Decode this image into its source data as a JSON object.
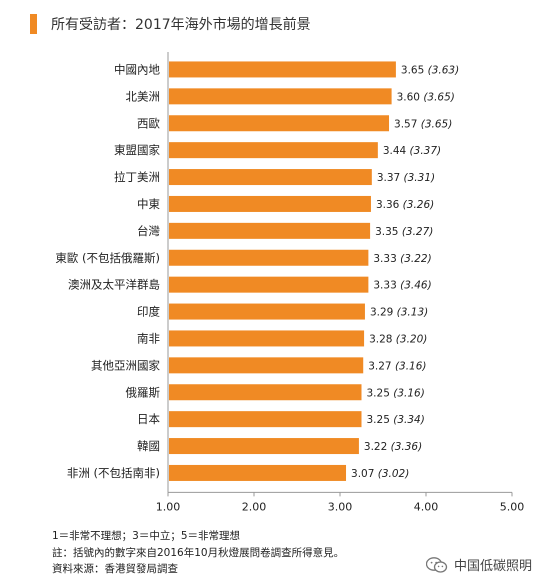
{
  "title": "所有受訪者：2017年海外市場的增長前景",
  "chart_data": {
    "type": "bar",
    "orientation": "horizontal",
    "title": "所有受訪者：2017年海外市場的增長前景",
    "categories": [
      "中國內地",
      "北美洲",
      "西歐",
      "東盟國家",
      "拉丁美洲",
      "中東",
      "台灣",
      "東歐 (不包括俄羅斯)",
      "澳洲及太平洋群島",
      "印度",
      "南非",
      "其他亞洲國家",
      "俄羅斯",
      "日本",
      "韓國",
      "非洲 (不包括南非)"
    ],
    "values": [
      3.65,
      3.6,
      3.57,
      3.44,
      3.37,
      3.36,
      3.35,
      3.33,
      3.33,
      3.29,
      3.28,
      3.27,
      3.25,
      3.25,
      3.22,
      3.07
    ],
    "previous_values": [
      3.63,
      3.65,
      3.65,
      3.37,
      3.31,
      3.26,
      3.27,
      3.22,
      3.46,
      3.13,
      3.2,
      3.16,
      3.16,
      3.34,
      3.36,
      3.02
    ],
    "value_labels": [
      "3.65",
      "3.60",
      "3.57",
      "3.44",
      "3.37",
      "3.36",
      "3.35",
      "3.33",
      "3.33",
      "3.29",
      "3.28",
      "3.27",
      "3.25",
      "3.25",
      "3.22",
      "3.07"
    ],
    "previous_labels": [
      "(3.63)",
      "(3.65)",
      "(3.65)",
      "(3.37)",
      "(3.31)",
      "(3.26)",
      "(3.27)",
      "(3.22)",
      "(3.46)",
      "(3.13)",
      "(3.20)",
      "(3.16)",
      "(3.16)",
      "(3.34)",
      "(3.36)",
      "(3.02)"
    ],
    "xlim": [
      1.0,
      5.0
    ],
    "xticks": [
      "1.00",
      "2.00",
      "3.00",
      "4.00",
      "5.00"
    ],
    "xtick_values": [
      1,
      2,
      3,
      4,
      5
    ],
    "bar_color": "#f08a24"
  },
  "notes": [
    "1＝非常不理想；3＝中立；5＝非常理想",
    "註：括號內的數字來自2016年10月秋燈展問卷調查所得意見。",
    "資料來源：香港貿發局調查"
  ],
  "watermark": "中国低碳照明",
  "watermark_icon": "wechat-icon"
}
